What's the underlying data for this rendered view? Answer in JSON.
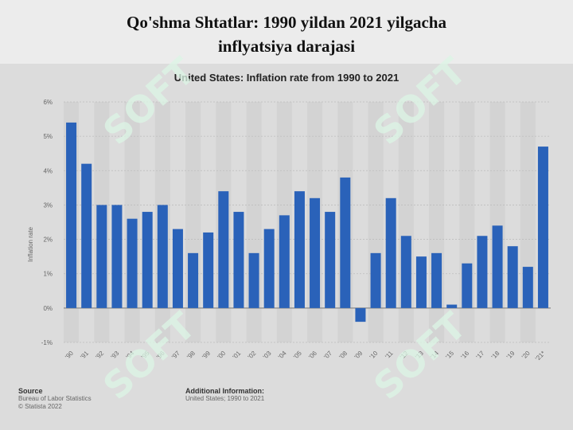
{
  "slide": {
    "title_line1": "Qo'shma Shtatlar: 1990 yildan 2021 yilgacha",
    "title_line2": "inflyatsiya darajasi"
  },
  "watermark": "SOFT",
  "chart_data": {
    "type": "bar",
    "title": "United States: Inflation rate from 1990 to 2021",
    "ylabel": "Inflation rate",
    "xlabel": "",
    "ylim": [
      -1,
      6
    ],
    "yticks": [
      -1,
      0,
      1,
      2,
      3,
      4,
      5,
      6
    ],
    "ytick_labels": [
      "-1%",
      "0%",
      "1%",
      "2%",
      "3%",
      "4%",
      "5%",
      "6%"
    ],
    "grid": true,
    "bar_color": "#2a62b9",
    "categories": [
      "'90",
      "'91",
      "'92",
      "'93",
      "'94",
      "'95",
      "'96",
      "'97",
      "'98",
      "'99",
      "'00",
      "'01",
      "'02",
      "'03",
      "'04",
      "'05",
      "'06",
      "'07",
      "'08",
      "'09",
      "'10",
      "'11",
      "'12",
      "'13",
      "'14",
      "'15",
      "'16",
      "'17",
      "'18",
      "'19",
      "'20",
      "'21*"
    ],
    "values": [
      5.4,
      4.2,
      3.0,
      3.0,
      2.6,
      2.8,
      3.0,
      2.3,
      1.6,
      2.2,
      3.4,
      2.8,
      1.6,
      2.3,
      2.7,
      3.4,
      3.2,
      2.8,
      3.8,
      -0.4,
      1.6,
      3.2,
      2.1,
      1.5,
      1.6,
      0.1,
      1.3,
      2.1,
      2.4,
      1.8,
      1.2,
      4.7
    ]
  },
  "footer": {
    "source_heading": "Source",
    "source_line1": "Bureau of Labor Statistics",
    "source_line2": "© Statista 2022",
    "additional_heading": "Additional Information:",
    "additional_line1": "United States; 1990 to 2021"
  }
}
